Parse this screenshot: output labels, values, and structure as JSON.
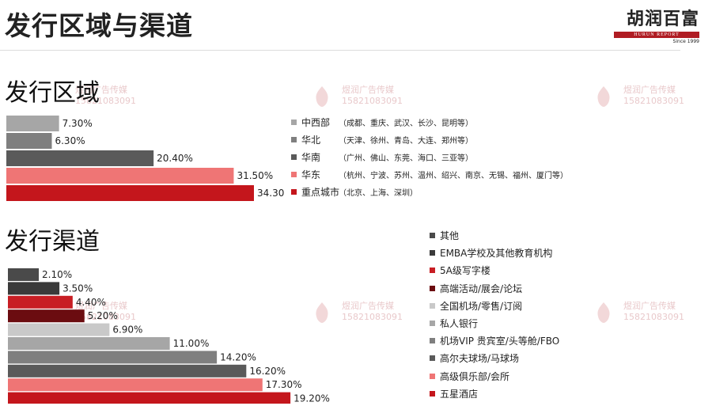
{
  "page": {
    "title": "发行区域与渠道",
    "logo_cn": "胡润百富",
    "logo_en": "HURUN REPORT",
    "logo_since": "Since 1999"
  },
  "watermark": {
    "name": "煜润广告传媒",
    "phone": "15821083091"
  },
  "colors": {
    "red_dark": "#c4161c",
    "red_light": "#ef7575",
    "gray_dark": "#5a5a5a",
    "gray_mid": "#7f7f7f",
    "gray_light": "#a6a6a6",
    "gray_pale": "#c9c9c9",
    "maroon": "#6b0c10",
    "black": "#3a3a3a",
    "red": "#c81e24"
  },
  "chart_data": [
    {
      "type": "bar",
      "title": "发行区域",
      "orientation": "horizontal",
      "categories": [
        "中西部",
        "华北",
        "华南",
        "华东",
        "重点城市"
      ],
      "values": [
        7.3,
        6.3,
        20.4,
        31.5,
        34.3
      ],
      "value_labels": [
        "7.30%",
        "6.30%",
        "20.40%",
        "31.50%",
        "34.30%"
      ],
      "bar_colors": [
        "#a6a6a6",
        "#7f7f7f",
        "#5a5a5a",
        "#ef7575",
        "#c4161c"
      ],
      "descriptions": [
        "（成都、重庆、武汉、长沙、昆明等）",
        "（天津、徐州、青岛、大连、郑州等）",
        "（广州、佛山、东莞、海口、三亚等）",
        "（杭州、宁波、苏州、温州、绍兴、南京、无锡、福州、厦门等）",
        "（北京、上海、深圳）"
      ],
      "xlim": [
        0,
        40
      ],
      "legend_position": "right"
    },
    {
      "type": "bar",
      "title": "发行渠道",
      "orientation": "horizontal",
      "categories": [
        "其他",
        "EMBA学校及其他教育机构",
        "5A级写字楼",
        "高端活动/展会/论坛",
        "全国机场/零售/订阅",
        "私人银行",
        "机场VIP 贵宾室/头等舱/FBO",
        "高尔夫球场/马球场",
        "高级俱乐部/会所",
        "五星酒店"
      ],
      "values": [
        2.1,
        3.5,
        4.4,
        5.2,
        6.9,
        11.0,
        14.2,
        16.2,
        17.3,
        19.2
      ],
      "value_labels": [
        "2.10%",
        "3.50%",
        "4.40%",
        "5.20%",
        "6.90%",
        "11.00%",
        "14.20%",
        "16.20%",
        "17.30%",
        "19.20%"
      ],
      "bar_colors": [
        "#4a4a4a",
        "#3a3a3a",
        "#c81e24",
        "#6b0c10",
        "#c9c9c9",
        "#a6a6a6",
        "#7f7f7f",
        "#5a5a5a",
        "#ef7575",
        "#c4161c"
      ],
      "xlim": [
        0,
        20
      ],
      "legend_position": "right"
    }
  ]
}
